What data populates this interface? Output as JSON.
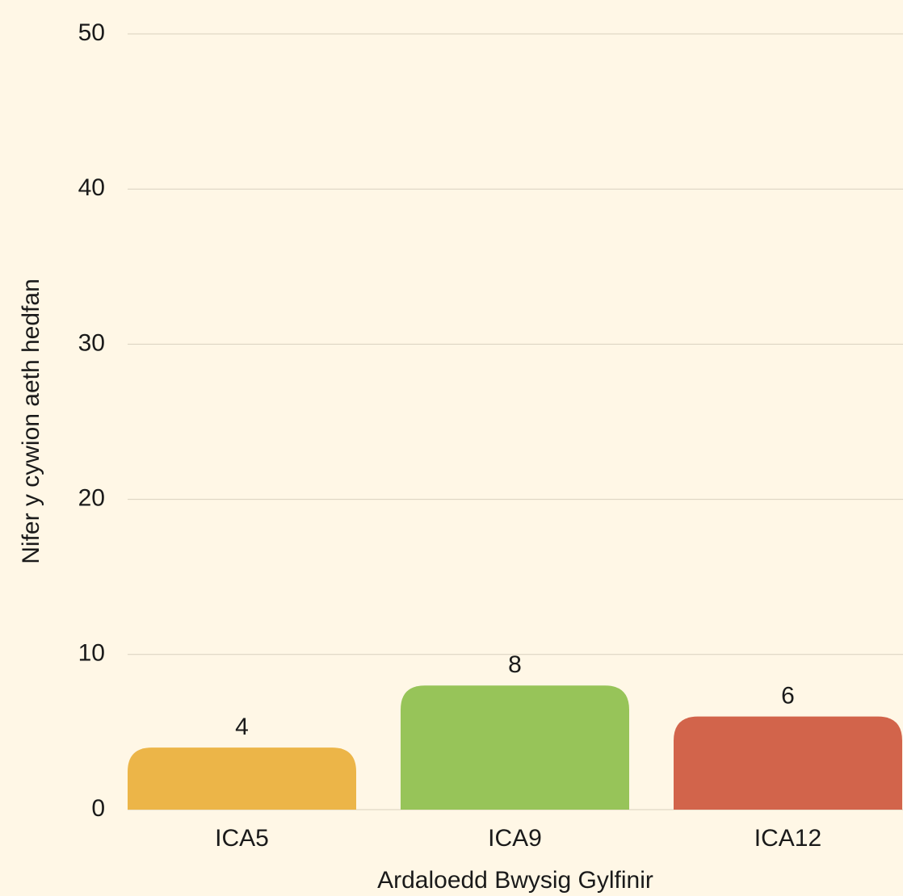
{
  "chart_data": {
    "type": "bar",
    "x_label": "Ardaloedd Bwysig Gylfinir",
    "y_label": "Nifer y cywion aeth hedfan",
    "categories": [
      "ICA5",
      "ICA9",
      "ICA12"
    ],
    "values": [
      4,
      8,
      6
    ],
    "colors": [
      "#ecb548",
      "#97c459",
      "#d2644b"
    ],
    "ylim": [
      0,
      50
    ],
    "yticks": [
      0,
      10,
      20,
      30,
      40,
      50
    ],
    "grid": true
  }
}
